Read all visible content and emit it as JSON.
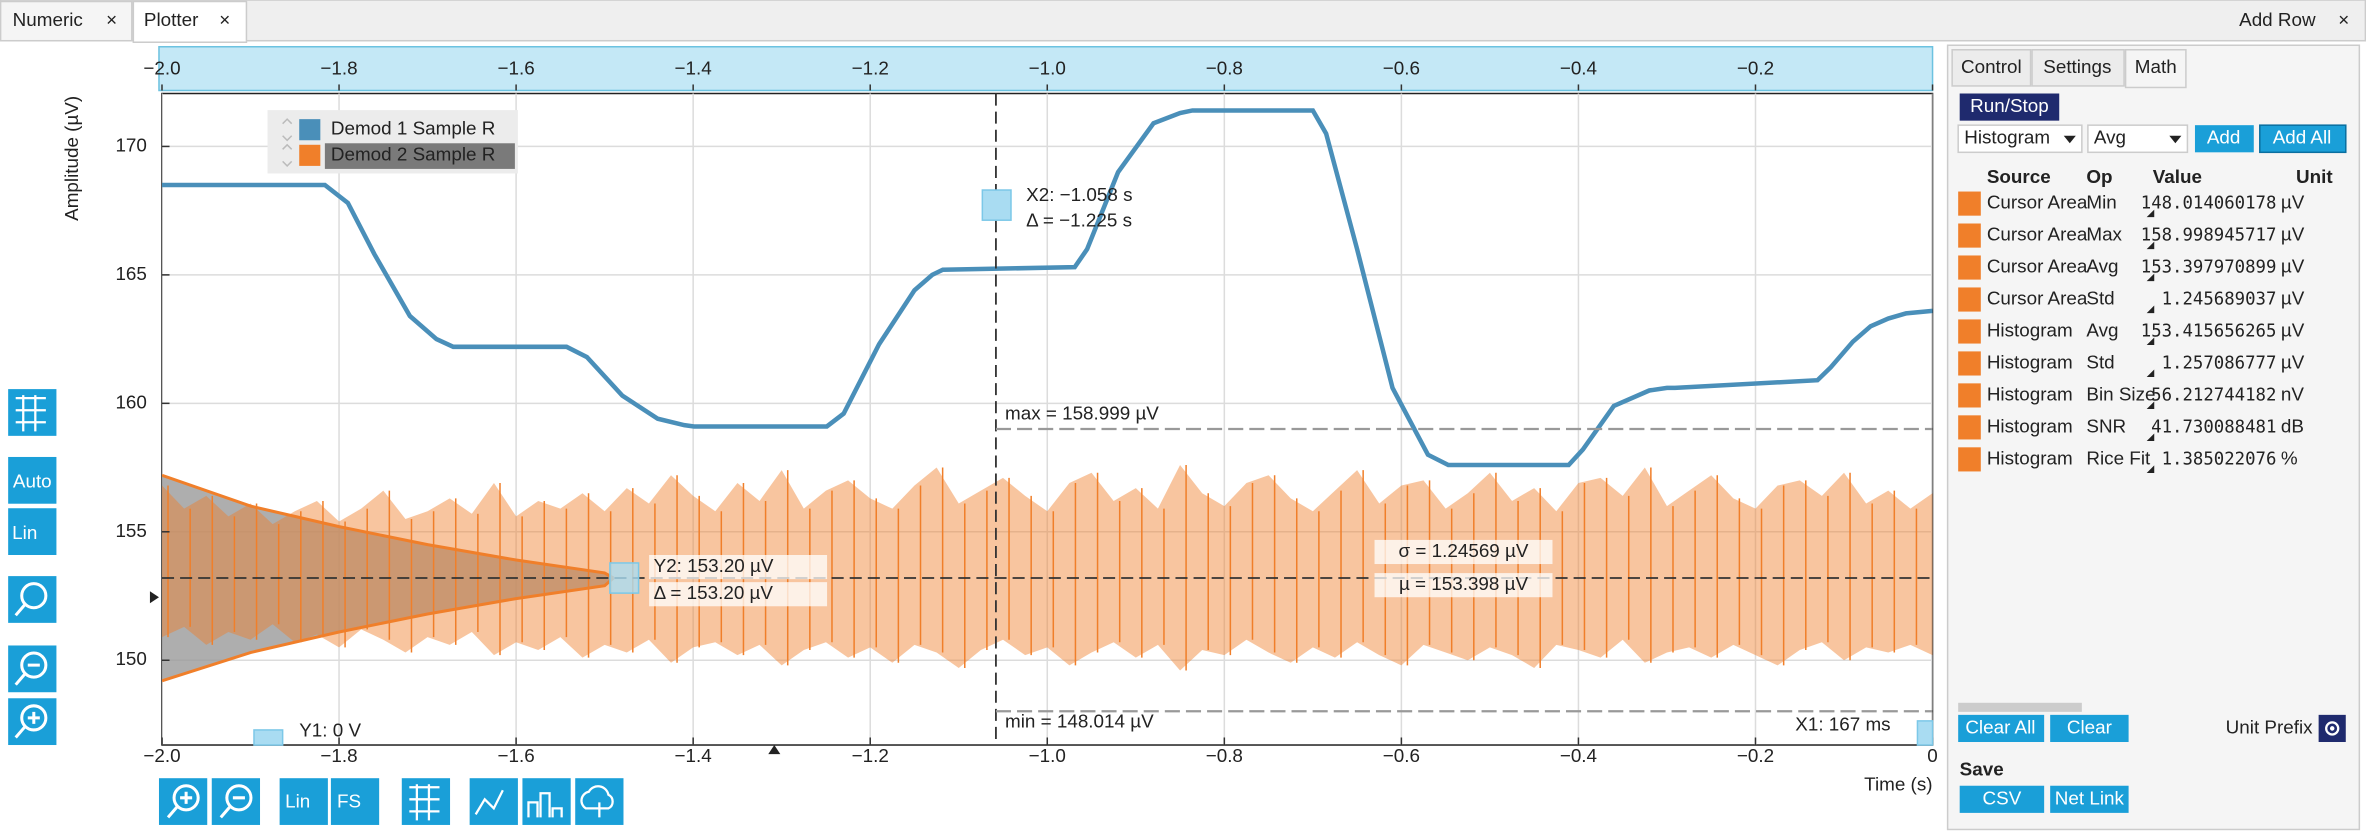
{
  "tabs": [
    {
      "label": "Numeric",
      "close": "×"
    },
    {
      "label": "Plotter",
      "close": "×"
    }
  ],
  "add_row": {
    "label": "Add Row",
    "close": "×"
  },
  "toolbar": {
    "auto": "Auto",
    "lin": "Lin"
  },
  "bottom_toolbar": {
    "lin": "Lin",
    "fs": "FS"
  },
  "chart_data": {
    "type": "line",
    "x_label": "Time (s)",
    "y_label": "Amplitude (µV)",
    "xlim": [
      -2,
      0
    ],
    "ylim": [
      146.7,
      172.06
    ],
    "xticks": [
      {
        "value": -2,
        "label": "−2.0"
      },
      {
        "value": -1.8,
        "label": "−1.8"
      },
      {
        "value": -1.6,
        "label": "−1.6"
      },
      {
        "value": -1.4,
        "label": "−1.4"
      },
      {
        "value": -1.2,
        "label": "−1.2"
      },
      {
        "value": -1,
        "label": "−1.0"
      },
      {
        "value": -0.8,
        "label": "−0.8"
      },
      {
        "value": -0.6,
        "label": "−0.6"
      },
      {
        "value": -0.4,
        "label": "−0.4"
      },
      {
        "value": -0.2,
        "label": "−0.2"
      },
      0
    ],
    "yticks": [
      150,
      155,
      160,
      165,
      170
    ],
    "grid": true,
    "series": [
      {
        "name": "Demod 1 Sample R",
        "color": "#4a8fb9",
        "x": [
          -2,
          -1.816,
          -1.79,
          -1.76,
          -1.72,
          -1.69,
          -1.671,
          -1.543,
          -1.52,
          -1.48,
          -1.44,
          -1.41,
          -1.399,
          -1.249,
          -1.23,
          -1.19,
          -1.15,
          -1.13,
          -1.118,
          -0.969,
          -0.955,
          -0.92,
          -0.88,
          -0.85,
          -0.836,
          -0.7,
          -0.685,
          -0.65,
          -0.61,
          -0.57,
          -0.547,
          -0.411,
          -0.395,
          -0.36,
          -0.32,
          -0.3,
          -0.291,
          -0.13,
          -0.115,
          -0.09,
          -0.07,
          -0.05,
          -0.03,
          0
        ],
        "values": [
          168.5,
          168.5,
          167.8,
          165.8,
          163.4,
          162.5,
          162.2,
          162.2,
          161.8,
          160.3,
          159.4,
          159.15,
          159.1,
          159.1,
          159.6,
          162.3,
          164.4,
          165.0,
          165.2,
          165.3,
          166.0,
          169.0,
          170.9,
          171.3,
          171.4,
          171.4,
          170.5,
          166.0,
          160.6,
          158.0,
          157.6,
          157.6,
          158.2,
          159.9,
          160.5,
          160.6,
          160.6,
          160.9,
          161.4,
          162.4,
          163.0,
          163.3,
          163.5,
          163.6
        ]
      },
      {
        "name": "Demod 2 Sample R",
        "color": "#f07f2a",
        "x": [
          -2,
          -1.975,
          -1.95,
          -1.925,
          -1.9,
          -1.875,
          -1.85,
          -1.825,
          -1.8,
          -1.775,
          -1.75,
          -1.725,
          -1.7,
          -1.675,
          -1.65,
          -1.625,
          -1.6,
          -1.575,
          -1.55,
          -1.525,
          -1.5,
          -1.475,
          -1.45,
          -1.425,
          -1.4,
          -1.375,
          -1.35,
          -1.325,
          -1.3,
          -1.275,
          -1.25,
          -1.225,
          -1.2,
          -1.175,
          -1.15,
          -1.125,
          -1.1,
          -1.075,
          -1.05,
          -1.025,
          -1,
          -0.975,
          -0.95,
          -0.925,
          -0.9,
          -0.875,
          -0.85,
          -0.825,
          -0.8,
          -0.775,
          -0.75,
          -0.725,
          -0.7,
          -0.675,
          -0.65,
          -0.625,
          -0.6,
          -0.575,
          -0.55,
          -0.525,
          -0.5,
          -0.475,
          -0.45,
          -0.425,
          -0.4,
          -0.375,
          -0.35,
          -0.325,
          -0.3,
          -0.275,
          -0.25,
          -0.225,
          -0.2,
          -0.175,
          -0.15,
          -0.125,
          -0.1,
          -0.075,
          -0.05,
          -0.025,
          0
        ],
        "upper": [
          156.8,
          155.9,
          156.4,
          155.6,
          156.1,
          155.3,
          155.8,
          156.2,
          155.4,
          155.9,
          156.6,
          155.5,
          155.8,
          156.3,
          155.7,
          156.9,
          155.6,
          156.2,
          155.9,
          156.5,
          155.8,
          156.7,
          156.1,
          157.2,
          156.4,
          155.8,
          156.9,
          156.2,
          157.4,
          155.9,
          156.6,
          157.0,
          156.3,
          155.9,
          156.8,
          157.5,
          156.1,
          156.6,
          157.1,
          156.4,
          155.8,
          156.9,
          157.3,
          156.2,
          156.7,
          155.9,
          157.6,
          156.5,
          156.0,
          156.9,
          157.2,
          156.3,
          155.8,
          156.6,
          157.4,
          156.1,
          156.8,
          157.0,
          155.9,
          156.5,
          157.3,
          156.2,
          156.7,
          155.8,
          156.9,
          157.1,
          156.4,
          157.5,
          156.0,
          156.6,
          157.2,
          156.3,
          155.9,
          156.8,
          157.0,
          156.4,
          157.3,
          156.1,
          156.6,
          155.9,
          156.5
        ],
        "lower": [
          150.9,
          151.3,
          150.6,
          151.1,
          150.8,
          151.4,
          150.7,
          151.0,
          150.5,
          151.2,
          150.8,
          150.3,
          150.9,
          150.6,
          151.1,
          150.2,
          150.7,
          150.4,
          150.9,
          150.1,
          150.6,
          150.3,
          150.8,
          149.9,
          150.5,
          150.7,
          150.2,
          150.6,
          149.8,
          150.4,
          150.7,
          150.1,
          150.5,
          149.9,
          150.6,
          150.3,
          149.7,
          150.4,
          150.8,
          150.2,
          150.5,
          149.8,
          150.3,
          150.7,
          150.1,
          150.6,
          149.6,
          150.4,
          150.2,
          150.8,
          150.3,
          149.9,
          150.5,
          150.1,
          150.7,
          150.2,
          149.8,
          150.6,
          150.3,
          150.0,
          150.5,
          150.2,
          149.7,
          150.6,
          150.4,
          150.1,
          150.8,
          149.9,
          150.3,
          150.5,
          150.1,
          150.6,
          150.2,
          149.8,
          150.4,
          150.7,
          150.0,
          150.5,
          150.3,
          150.6,
          150.2
        ]
      }
    ],
    "histogram": {
      "color": "#9a9a9a",
      "x": [
        -2,
        -1.9,
        -1.8,
        -1.7,
        -1.6,
        -1.5,
        -1.49
      ],
      "upper": [
        157.2,
        156.0,
        155.2,
        154.5,
        153.9,
        153.4,
        153.2
      ],
      "lower": [
        149.2,
        150.3,
        151.1,
        151.8,
        152.4,
        152.9,
        153.2
      ]
    },
    "cursors": {
      "x2": -1.058,
      "y2": 153.2,
      "max": 158.999,
      "min": 148.014,
      "x2_label": "X2: −1.058 s",
      "dx_label": "Δ = −1.225 s",
      "y2_label": "Y2: 153.20 µV",
      "dy_label": "Δ = 153.20 µV",
      "max_label": "max = 158.999 µV",
      "min_label": "min = 148.014 µV",
      "sigma_label": "σ = 1.24569 µV",
      "mu_label": "µ = 153.398 µV",
      "y1_label": "Y1: 0 V",
      "x1_label": "X1: 167 ms"
    }
  },
  "math_panel": {
    "tabs": [
      "Control",
      "Settings",
      "Math"
    ],
    "run_stop": "Run/Stop",
    "source_select": "Histogram",
    "op_select": "Avg",
    "add": "Add",
    "add_all": "Add All",
    "columns": [
      "Source",
      "Op",
      "Value",
      "Unit"
    ],
    "rows": [
      [
        "Cursor Area",
        "Min",
        "148.014060178",
        "µV"
      ],
      [
        "Cursor Area",
        "Max",
        "158.998945717",
        "µV"
      ],
      [
        "Cursor Area",
        "Avg",
        "153.397970899",
        "µV"
      ],
      [
        "Cursor Area",
        "Std",
        "1.245689037",
        "µV"
      ],
      [
        "Histogram",
        "Avg",
        "153.415656265",
        "µV"
      ],
      [
        "Histogram",
        "Std",
        "1.257086777",
        "µV"
      ],
      [
        "Histogram",
        "Bin Size",
        "56.212744182",
        "nV"
      ],
      [
        "Histogram",
        "SNR",
        "41.730088481",
        "dB"
      ],
      [
        "Histogram",
        "Rice Fit",
        "1.385022076",
        "%"
      ]
    ],
    "clear_all": "Clear All",
    "clear": "Clear",
    "unit_prefix": "Unit Prefix",
    "save": "Save",
    "csv": "CSV",
    "net_link": "Net Link"
  }
}
